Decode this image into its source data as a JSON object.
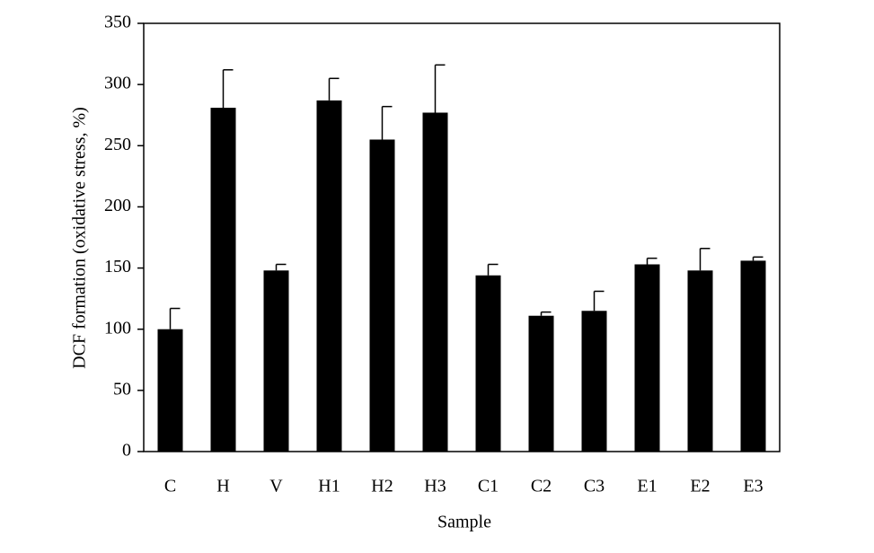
{
  "chart_data": {
    "type": "bar",
    "x_label": "Sample",
    "y_label": "DCF formation (oxidative stress, %)",
    "categories": [
      "C",
      "H",
      "V",
      "H1",
      "H2",
      "H3",
      "C1",
      "C2",
      "C3",
      "E1",
      "E2",
      "E3"
    ],
    "values": [
      100,
      281,
      148,
      287,
      255,
      277,
      144,
      111,
      115,
      153,
      148,
      156
    ],
    "errors": [
      17,
      31,
      5,
      18,
      27,
      39,
      9,
      3,
      16,
      5,
      18,
      3
    ],
    "color": "#000000",
    "ylim": [
      0,
      350
    ],
    "yticks": [
      0,
      50,
      100,
      150,
      200,
      250,
      300,
      350
    ],
    "grid": false
  }
}
